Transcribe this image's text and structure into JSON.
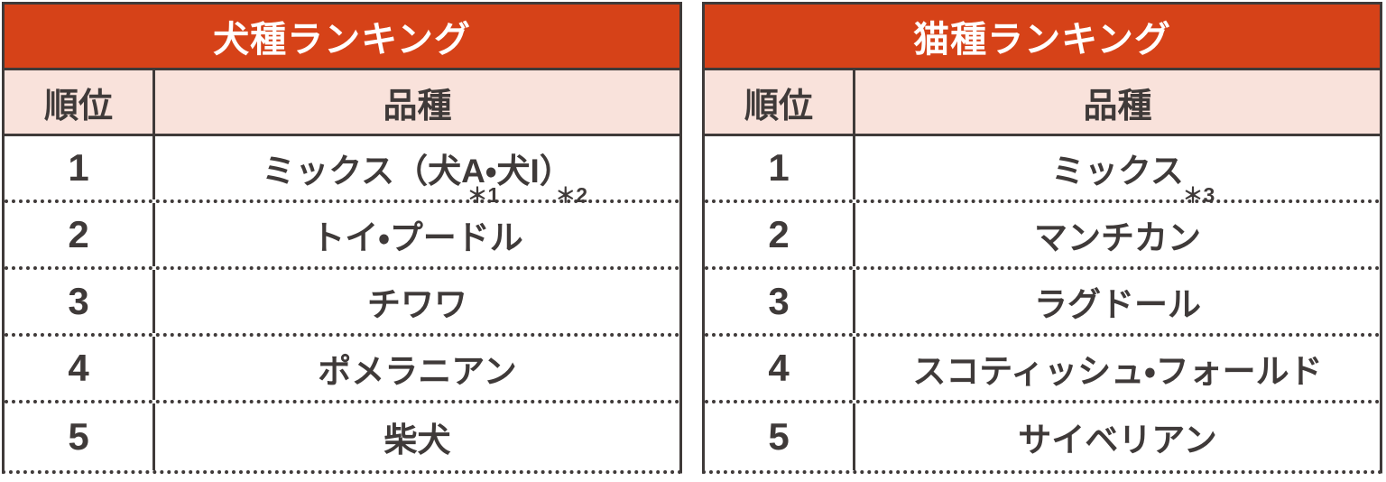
{
  "colors": {
    "title_bg": "#D64218",
    "header_bg": "#F9E2DB",
    "ink": "#3F3A39",
    "title_text": "#FFFFFF",
    "row_bg": "#FFFFFF"
  },
  "chart_data": [
    {
      "type": "table",
      "title": "犬種ランキング",
      "columns": {
        "rank": "順位",
        "breed": "品種"
      },
      "rows": [
        {
          "rank": "1",
          "breed": "ミックス（犬A・犬I）",
          "footnotes": [
            "＊1",
            "＊2"
          ]
        },
        {
          "rank": "2",
          "breed": "トイ・プードル",
          "footnotes": []
        },
        {
          "rank": "3",
          "breed": "チワワ",
          "footnotes": []
        },
        {
          "rank": "4",
          "breed": "ポメラニアン",
          "footnotes": []
        },
        {
          "rank": "5",
          "breed": "柴犬",
          "footnotes": []
        }
      ]
    },
    {
      "type": "table",
      "title": "猫種ランキング",
      "columns": {
        "rank": "順位",
        "breed": "品種"
      },
      "rows": [
        {
          "rank": "1",
          "breed": "ミックス",
          "footnotes": [
            "＊3"
          ]
        },
        {
          "rank": "2",
          "breed": "マンチカン",
          "footnotes": []
        },
        {
          "rank": "3",
          "breed": "ラグドール",
          "footnotes": []
        },
        {
          "rank": "4",
          "breed": "スコティッシュ・フォールド",
          "footnotes": []
        },
        {
          "rank": "5",
          "breed": "サイベリアン",
          "footnotes": []
        }
      ]
    }
  ]
}
